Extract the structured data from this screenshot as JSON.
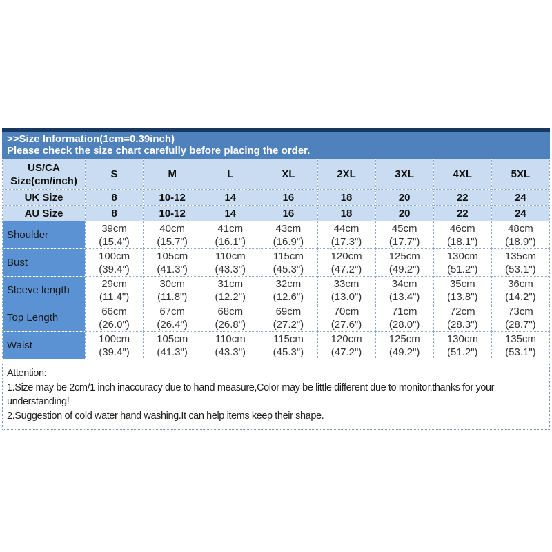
{
  "colors": {
    "top_border": "#17375E",
    "header_band": "#4F81BD",
    "header_cell_bg": "#C9DCF1",
    "row_label_bg": "#5B92D3",
    "cell_border": "#8FA9CC",
    "attention_border": "#6F94B4",
    "header_text": "#FFFFFF"
  },
  "header": {
    "line1": ">>Size Information(1cm=0.39inch)",
    "line2": "Please check the size chart carefully before placing the order."
  },
  "table": {
    "corner": {
      "line1": "US/CA",
      "line2": "Size(cm/inch)"
    },
    "size_columns": [
      "S",
      "M",
      "L",
      "XL",
      "2XL",
      "3XL",
      "4XL",
      "5XL"
    ],
    "size_rows": [
      {
        "label": "UK Size",
        "values": [
          "8",
          "10-12",
          "14",
          "16",
          "18",
          "20",
          "22",
          "24"
        ]
      },
      {
        "label": "AU Size",
        "values": [
          "8",
          "10-12",
          "14",
          "16",
          "18",
          "20",
          "22",
          "24"
        ]
      }
    ],
    "measurement_rows": [
      {
        "label": "Shoulder",
        "cm": [
          "39cm",
          "40cm",
          "41cm",
          "43cm",
          "44cm",
          "45cm",
          "46cm",
          "48cm"
        ],
        "inch": [
          "(15.4\")",
          "(15.7\")",
          "(16.1\")",
          "(16.9\")",
          "(17.3\")",
          "(17.7\")",
          "(18.1\")",
          "(18.9\")"
        ]
      },
      {
        "label": "Bust",
        "cm": [
          "100cm",
          "105cm",
          "110cm",
          "115cm",
          "120cm",
          "125cm",
          "130cm",
          "135cm"
        ],
        "inch": [
          "(39.4\")",
          "(41.3\")",
          "(43.3\")",
          "(45.3\")",
          "(47.2\")",
          "(49.2\")",
          "(51.2\")",
          "(53.1\")"
        ]
      },
      {
        "label": "Sleeve length",
        "cm": [
          "29cm",
          "30cm",
          "31cm",
          "32cm",
          "33cm",
          "34cm",
          "35cm",
          "36cm"
        ],
        "inch": [
          "(11.4\")",
          "(11.8\")",
          "(12.2\")",
          "(12.6\")",
          "(13.0\")",
          "(13.4\")",
          "(13.8\")",
          "(14.2\")"
        ]
      },
      {
        "label": "Top Length",
        "cm": [
          "66cm",
          "67cm",
          "68cm",
          "69cm",
          "70cm",
          "71cm",
          "72cm",
          "73cm"
        ],
        "inch": [
          "(26.0\")",
          "(26.4\")",
          "(26.8\")",
          "(27.2\")",
          "(27.6\")",
          "(28.0\")",
          "(28.3\")",
          "(28.7\")"
        ]
      },
      {
        "label": "Waist",
        "cm": [
          "100cm",
          "105cm",
          "110cm",
          "115cm",
          "120cm",
          "125cm",
          "130cm",
          "135cm"
        ],
        "inch": [
          "(39.4\")",
          "(41.3\")",
          "(43.3\")",
          "(45.3\")",
          "(47.2\")",
          "(49.2\")",
          "(51.2\")",
          "(53.1\")"
        ]
      }
    ]
  },
  "attention": {
    "title": "Attention:",
    "line1": "1.Size may be 2cm/1 inch inaccuracy due to hand measure,Color may be little different due to monitor,thanks for your understanding!",
    "line2": "2.Suggestion of cold water hand washing.It can help items keep their shape."
  },
  "chart_data": {
    "type": "table",
    "title": ">>Size Information(1cm=0.39inch)",
    "subtitle": "Please check the size chart carefully before placing the order.",
    "columns": [
      "US/CA Size(cm/inch)",
      "S",
      "M",
      "L",
      "XL",
      "2XL",
      "3XL",
      "4XL",
      "5XL"
    ],
    "rows": [
      [
        "UK Size",
        "8",
        "10-12",
        "14",
        "16",
        "18",
        "20",
        "22",
        "24"
      ],
      [
        "AU Size",
        "8",
        "10-12",
        "14",
        "16",
        "18",
        "20",
        "22",
        "24"
      ],
      [
        "Shoulder",
        "39cm (15.4\")",
        "40cm (15.7\")",
        "41cm (16.1\")",
        "43cm (16.9\")",
        "44cm (17.3\")",
        "45cm (17.7\")",
        "46cm (18.1\")",
        "48cm (18.9\")"
      ],
      [
        "Bust",
        "100cm (39.4\")",
        "105cm (41.3\")",
        "110cm (43.3\")",
        "115cm (45.3\")",
        "120cm (47.2\")",
        "125cm (49.2\")",
        "130cm (51.2\")",
        "135cm (53.1\")"
      ],
      [
        "Sleeve length",
        "29cm (11.4\")",
        "30cm (11.8\")",
        "31cm (12.2\")",
        "32cm (12.6\")",
        "33cm (13.0\")",
        "34cm (13.4\")",
        "35cm (13.8\")",
        "36cm (14.2\")"
      ],
      [
        "Top Length",
        "66cm (26.0\")",
        "67cm (26.4\")",
        "68cm (26.8\")",
        "69cm (27.2\")",
        "70cm (27.6\")",
        "71cm (28.0\")",
        "72cm (28.3\")",
        "73cm (28.7\")"
      ],
      [
        "Waist",
        "100cm (39.4\")",
        "105cm (41.3\")",
        "110cm (43.3\")",
        "115cm (45.3\")",
        "120cm (47.2\")",
        "125cm (49.2\")",
        "130cm (51.2\")",
        "135cm (53.1\")"
      ]
    ],
    "notes": [
      "Attention:",
      "1.Size may be 2cm/1 inch inaccuracy due to hand measure,Color may be little different due to monitor,thanks for your understanding!",
      "2.Suggestion of cold water hand washing.It can help items keep their shape."
    ]
  }
}
